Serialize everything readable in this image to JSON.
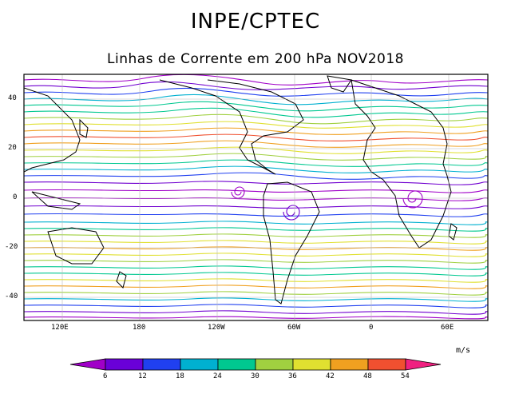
{
  "header": {
    "title": "INPE/CPTEC",
    "subtitle": "Linhas de Corrente em 200 hPa NOV2018"
  },
  "map": {
    "lat_ticks": [
      "40",
      "20",
      "0",
      "-20",
      "-40"
    ],
    "lon_ticks": [
      "120E",
      "180",
      "120W",
      "60W",
      "0",
      "60E"
    ],
    "grid": true
  },
  "colorbar": {
    "units": "m/s",
    "ticks": [
      "6",
      "12",
      "18",
      "24",
      "30",
      "36",
      "42",
      "48",
      "54"
    ],
    "colors": [
      "#a000c8",
      "#6a00d8",
      "#2040f0",
      "#00b0d0",
      "#00c890",
      "#a0d040",
      "#e0e030",
      "#f0a020",
      "#f05030",
      "#f02080",
      "#e030b0"
    ]
  }
}
